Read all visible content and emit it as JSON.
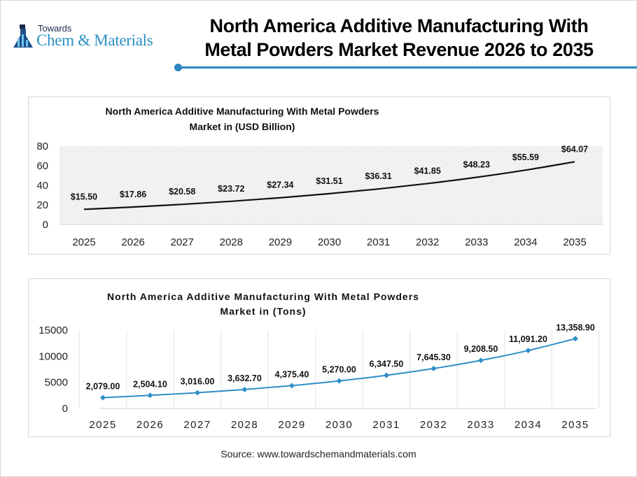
{
  "header": {
    "logo_top": "Towards",
    "logo_main": "Chem & Materials",
    "title_line1": "North America Additive Manufacturing With",
    "title_line2": "Metal Powders Market Revenue 2026 to 2035",
    "accent_color": "#2b86bf"
  },
  "chart_data": [
    {
      "type": "line",
      "title_line1": "North America Additive Manufacturing With Metal Powders",
      "title_line2": "Market in (USD Billion)",
      "categories": [
        "2025",
        "2026",
        "2027",
        "2028",
        "2029",
        "2030",
        "2031",
        "2032",
        "2033",
        "2034",
        "2035"
      ],
      "values": [
        15.5,
        17.86,
        20.58,
        23.72,
        27.34,
        31.51,
        36.31,
        41.85,
        48.23,
        55.59,
        64.07
      ],
      "data_labels": [
        "$15.50",
        "$17.86",
        "$20.58",
        "$23.72",
        "$27.34",
        "$31.51",
        "$36.31",
        "$41.85",
        "$48.23",
        "$55.59",
        "$64.07"
      ],
      "yticks": [
        "0",
        "20",
        "40",
        "60",
        "80"
      ],
      "ylim": [
        0,
        80
      ],
      "line_color": "#111111",
      "plot_background": "hatched light gray",
      "markers": false
    },
    {
      "type": "line",
      "title_line1": "North America Additive Manufacturing With Metal Powders",
      "title_line2": "Market in (Tons)",
      "categories": [
        "2025",
        "2026",
        "2027",
        "2028",
        "2029",
        "2030",
        "2031",
        "2032",
        "2033",
        "2034",
        "2035"
      ],
      "values": [
        2079.0,
        2504.1,
        3016.0,
        3632.7,
        4375.4,
        5270.0,
        6347.5,
        7645.3,
        9208.5,
        11091.2,
        13358.9
      ],
      "data_labels": [
        "2,079.00",
        "2,504.10",
        "3,016.00",
        "3,632.70",
        "4,375.40",
        "5,270.00",
        "6,347.50",
        "7,645.30",
        "9,208.50",
        "11,091.20",
        "13,358.90"
      ],
      "yticks": [
        "0",
        "5000",
        "10000",
        "15000"
      ],
      "ylim": [
        0,
        15000
      ],
      "line_color": "#2e8fc8",
      "markers": "diamond",
      "grid": "vertical"
    }
  ],
  "footer": {
    "source": "Source: www.towardschemandmaterials.com"
  }
}
